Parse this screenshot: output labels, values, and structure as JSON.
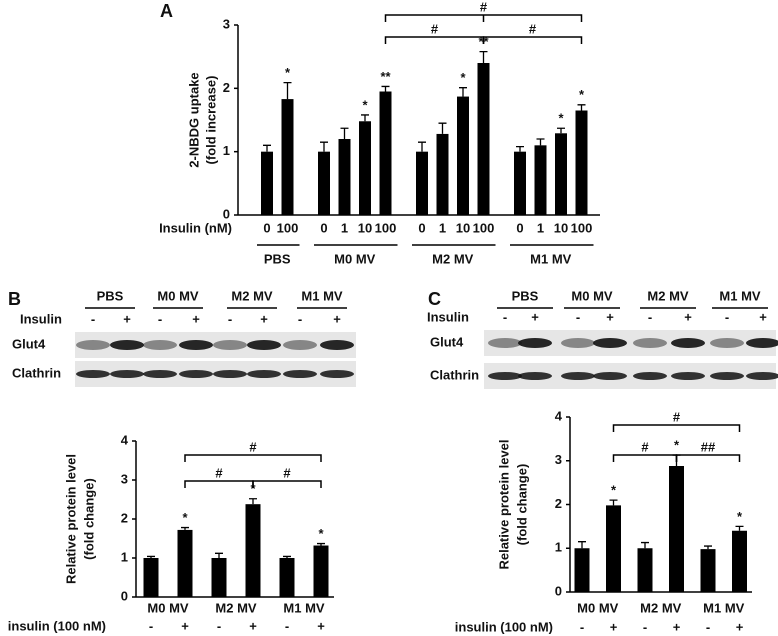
{
  "chart_data": [
    {
      "type": "bar",
      "panel": "A",
      "y_label": [
        "2-NBDG uptake",
        "(fold increase)"
      ],
      "x_label": "Insulin (nM)",
      "ylim": [
        0,
        3
      ],
      "yticks": [
        0,
        1,
        2,
        3
      ],
      "color": "#000000",
      "groups": [
        {
          "name": "PBS",
          "categories": [
            "0",
            "100"
          ],
          "values": [
            1.0,
            1.83
          ],
          "errors": [
            0.1,
            0.26
          ],
          "significance": [
            null,
            "*"
          ]
        },
        {
          "name": "M0 MV",
          "categories": [
            "0",
            "1",
            "10",
            "100"
          ],
          "values": [
            1.0,
            1.2,
            1.48,
            1.95
          ],
          "errors": [
            0.15,
            0.17,
            0.1,
            0.08
          ],
          "significance": [
            null,
            null,
            "*",
            "**"
          ]
        },
        {
          "name": "M2 MV",
          "categories": [
            "0",
            "1",
            "10",
            "100"
          ],
          "values": [
            1.0,
            1.28,
            1.87,
            2.4
          ],
          "errors": [
            0.15,
            0.17,
            0.14,
            0.18
          ],
          "significance": [
            null,
            null,
            "*",
            "**"
          ]
        },
        {
          "name": "M1 MV",
          "categories": [
            "0",
            "1",
            "10",
            "100"
          ],
          "values": [
            1.0,
            1.1,
            1.29,
            1.65
          ],
          "errors": [
            0.08,
            0.1,
            0.08,
            0.09
          ],
          "significance": [
            null,
            null,
            "*",
            "*"
          ]
        }
      ],
      "brackets": [
        {
          "label": "#"
        },
        {
          "label": "#"
        },
        {
          "label": "#"
        }
      ]
    },
    {
      "type": "bar",
      "panel": "B",
      "y_label": [
        "Relative protein level",
        "(fold change)"
      ],
      "x_label": "insulin (100 nM)",
      "ylim": [
        0,
        4
      ],
      "yticks": [
        0,
        1,
        2,
        3,
        4
      ],
      "color": "#000000",
      "groups": [
        {
          "name": "M0 MV",
          "categories": [
            "-",
            "+"
          ],
          "values": [
            1.0,
            1.72
          ],
          "errors": [
            0.04,
            0.06
          ],
          "significance": [
            null,
            "*"
          ]
        },
        {
          "name": "M2 MV",
          "categories": [
            "-",
            "+"
          ],
          "values": [
            1.0,
            2.38
          ],
          "errors": [
            0.12,
            0.14
          ],
          "significance": [
            null,
            "*"
          ]
        },
        {
          "name": "M1 MV",
          "categories": [
            "-",
            "+"
          ],
          "values": [
            1.0,
            1.32
          ],
          "errors": [
            0.04,
            0.05
          ],
          "significance": [
            null,
            "*"
          ]
        }
      ],
      "brackets": [
        {
          "label": "#"
        },
        {
          "label": "#"
        },
        {
          "label": "#"
        }
      ]
    },
    {
      "type": "bar",
      "panel": "C",
      "y_label": [
        "Relative protein level",
        "(fold change)"
      ],
      "x_label": "insulin (100 nM)",
      "ylim": [
        0,
        4
      ],
      "yticks": [
        0,
        1,
        2,
        3,
        4
      ],
      "color": "#000000",
      "groups": [
        {
          "name": "M0 MV",
          "categories": [
            "-",
            "+"
          ],
          "values": [
            1.0,
            1.98
          ],
          "errors": [
            0.15,
            0.12
          ],
          "significance": [
            null,
            "*"
          ]
        },
        {
          "name": "M2 MV",
          "categories": [
            "-",
            "+"
          ],
          "values": [
            1.0,
            2.88
          ],
          "errors": [
            0.13,
            0.25
          ],
          "significance": [
            null,
            "*"
          ]
        },
        {
          "name": "M1 MV",
          "categories": [
            "-",
            "+"
          ],
          "values": [
            0.98,
            1.4
          ],
          "errors": [
            0.07,
            0.1
          ],
          "significance": [
            null,
            "*"
          ]
        }
      ],
      "brackets": [
        {
          "label": "#"
        },
        {
          "label": "#"
        },
        {
          "label": "##"
        }
      ]
    }
  ],
  "blots": [
    {
      "groups": [
        "PBS",
        "M0 MV",
        "M2 MV",
        "M1 MV"
      ],
      "row_label": "Insulin",
      "signs": [
        "-",
        "+",
        "-",
        "+",
        "-",
        "+",
        "-",
        "+"
      ],
      "bands": [
        "Glut4",
        "Clathrin"
      ]
    },
    {
      "groups": [
        "PBS",
        "M0 MV",
        "M2 MV",
        "M1 MV"
      ],
      "row_label": "Insulin",
      "signs": [
        "-",
        "+",
        "-",
        "+",
        "-",
        "+",
        "-",
        "+"
      ],
      "bands": [
        "Glut4",
        "Clathrin"
      ]
    }
  ]
}
